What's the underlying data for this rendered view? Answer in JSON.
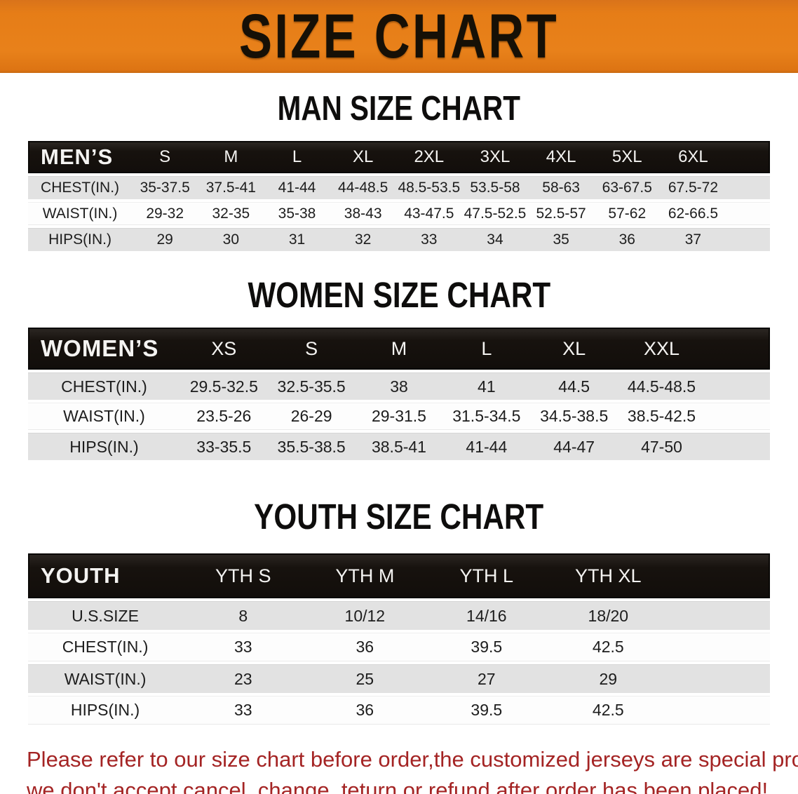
{
  "banner": {
    "title": "SIZE CHART"
  },
  "colors": {
    "banner_orange": "#e67d17",
    "header_band_black": "#17120e",
    "row_gray": "#e2e2e2",
    "disclaimer_red": "#a42424"
  },
  "sections": [
    {
      "id": "men",
      "title": "MAN SIZE CHART",
      "header_label": "MEN’S",
      "columns": [
        "S",
        "M",
        "L",
        "XL",
        "2XL",
        "3XL",
        "4XL",
        "5XL",
        "6XL"
      ],
      "layout": {
        "label_width": "14%",
        "col_width": "8.9%"
      },
      "rows": [
        {
          "label": "CHEST(IN.)",
          "values": [
            "35-37.5",
            "37.5-41",
            "41-44",
            "44-48.5",
            "48.5-53.5",
            "53.5-58",
            "58-63",
            "63-67.5",
            "67.5-72"
          ]
        },
        {
          "label": "WAIST(IN.)",
          "values": [
            "29-32",
            "32-35",
            "35-38",
            "38-43",
            "43-47.5",
            "47.5-52.5",
            "52.5-57",
            "57-62",
            "62-66.5"
          ]
        },
        {
          "label": "HIPS(IN.)",
          "values": [
            "29",
            "30",
            "31",
            "32",
            "33",
            "34",
            "35",
            "36",
            "37"
          ]
        }
      ]
    },
    {
      "id": "women",
      "title": "WOMEN SIZE CHART",
      "header_label": "WOMEN’S",
      "columns": [
        "XS",
        "S",
        "M",
        "L",
        "XL",
        "XXL"
      ],
      "layout": {
        "label_width": "20.5%",
        "col_width": "11.8%"
      },
      "rows": [
        {
          "label": "CHEST(IN.)",
          "values": [
            "29.5-32.5",
            "32.5-35.5",
            "38",
            "41",
            "44.5",
            "44.5-48.5"
          ]
        },
        {
          "label": "WAIST(IN.)",
          "values": [
            "23.5-26",
            "26-29",
            "29-31.5",
            "31.5-34.5",
            "34.5-38.5",
            "38.5-42.5"
          ]
        },
        {
          "label": "HIPS(IN.)",
          "values": [
            "33-35.5",
            "35.5-38.5",
            "38.5-41",
            "41-44",
            "44-47",
            "47-50"
          ]
        }
      ]
    },
    {
      "id": "youth",
      "title": "YOUTH SIZE CHART",
      "header_label": "YOUTH",
      "columns": [
        "YTH S",
        "YTH M",
        "YTH L",
        "YTH XL"
      ],
      "layout": {
        "label_width": "20.8%",
        "col_width": "16.4%"
      },
      "rows": [
        {
          "label": "U.S.SIZE",
          "values": [
            "8",
            "10/12",
            "14/16",
            "18/20"
          ]
        },
        {
          "label": "CHEST(IN.)",
          "values": [
            "33",
            "36",
            "39.5",
            "42.5"
          ]
        },
        {
          "label": "WAIST(IN.)",
          "values": [
            "23",
            "25",
            "27",
            "29"
          ]
        },
        {
          "label": "HIPS(IN.)",
          "values": [
            "33",
            "36",
            "39.5",
            "42.5"
          ]
        }
      ]
    }
  ],
  "disclaimer": {
    "line1": "Please refer to our size chart before order,the customized jerseys are special products,",
    "line2": "we don't accept cancel, change, teturn or refund after order has been placed!"
  }
}
